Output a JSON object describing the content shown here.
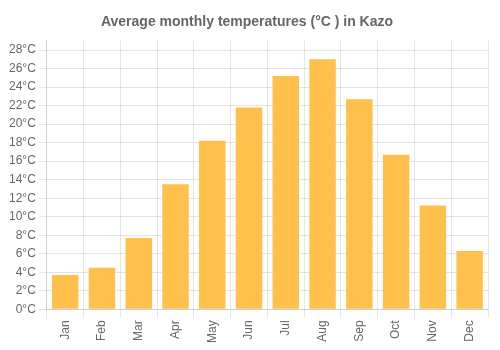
{
  "chart_data": {
    "type": "bar",
    "title": "Average monthly temperatures (°C ) in Kazo",
    "categories": [
      "Jan",
      "Feb",
      "Mar",
      "Apr",
      "May",
      "Jun",
      "Jul",
      "Aug",
      "Sep",
      "Oct",
      "Nov",
      "Dec"
    ],
    "values": [
      3.7,
      4.5,
      7.7,
      13.5,
      18.2,
      21.8,
      25.2,
      27.0,
      22.7,
      16.7,
      11.2,
      6.3
    ],
    "color": "#FFC04C",
    "ylim": [
      0,
      29
    ],
    "yticks": [
      {
        "value": 0,
        "label": "0°C"
      },
      {
        "value": 2,
        "label": "2°C"
      },
      {
        "value": 4,
        "label": "4°C"
      },
      {
        "value": 6,
        "label": "6°C"
      },
      {
        "value": 8,
        "label": "8°C"
      },
      {
        "value": 10,
        "label": "10°C"
      },
      {
        "value": 12,
        "label": "12°C"
      },
      {
        "value": 14,
        "label": "14°C"
      },
      {
        "value": 16,
        "label": "16°C"
      },
      {
        "value": 18,
        "label": "18°C"
      },
      {
        "value": 20,
        "label": "20°C"
      },
      {
        "value": 22,
        "label": "22°C"
      },
      {
        "value": 24,
        "label": "24°C"
      },
      {
        "value": 26,
        "label": "26°C"
      },
      {
        "value": 28,
        "label": "28°C"
      }
    ],
    "grid": true
  }
}
